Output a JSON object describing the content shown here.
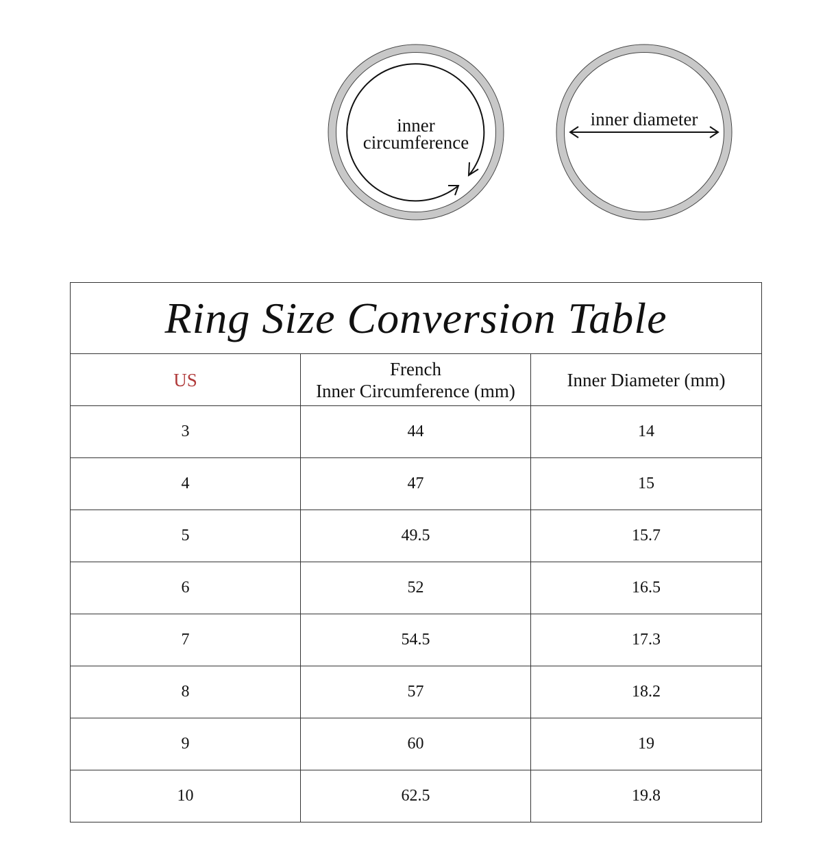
{
  "diagram": {
    "circumference_label_line1": "inner",
    "circumference_label_line2": "circumference",
    "diameter_label": "inner diameter",
    "ring_color": "#c8c8c8"
  },
  "table": {
    "title": "Ring Size Conversion Table",
    "headers": {
      "us": "US",
      "french_line1": "French",
      "french_line2": "Inner Circumference (mm)",
      "diameter": "Inner Diameter (mm)"
    },
    "us_color": "#b03a3a",
    "rows": [
      {
        "us": "3",
        "circumference": "44",
        "diameter": "14"
      },
      {
        "us": "4",
        "circumference": "47",
        "diameter": "15"
      },
      {
        "us": "5",
        "circumference": "49.5",
        "diameter": "15.7"
      },
      {
        "us": "6",
        "circumference": "52",
        "diameter": "16.5"
      },
      {
        "us": "7",
        "circumference": "54.5",
        "diameter": "17.3"
      },
      {
        "us": "8",
        "circumference": "57",
        "diameter": "18.2"
      },
      {
        "us": "9",
        "circumference": "60",
        "diameter": "19"
      },
      {
        "us": "10",
        "circumference": "62.5",
        "diameter": "19.8"
      }
    ]
  }
}
